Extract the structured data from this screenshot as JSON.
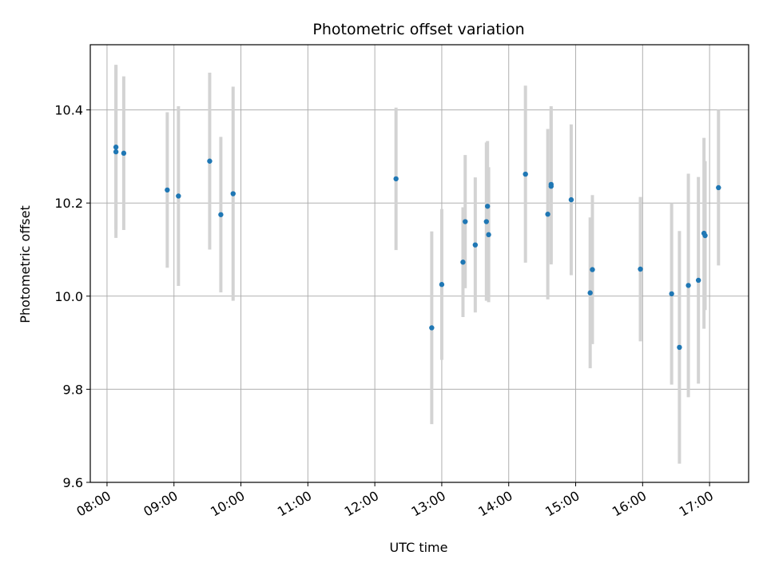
{
  "chart_data": {
    "type": "scatter",
    "title": "Photometric offset variation",
    "xlabel": "UTC time",
    "ylabel": "Photometric offset",
    "grid": true,
    "x_ticks": [
      "08:00",
      "09:00",
      "10:00",
      "11:00",
      "12:00",
      "13:00",
      "14:00",
      "15:00",
      "16:00",
      "17:00"
    ],
    "y_ticks": [
      "9.6",
      "9.8",
      "10.0",
      "10.2",
      "10.4"
    ],
    "ylim": [
      9.6,
      10.54
    ],
    "xlim_hours": [
      "07:45",
      "17:35"
    ],
    "colors": {
      "point": "#1f77b4",
      "errorbar": "#d3d3d3",
      "grid": "#b0b0b0"
    },
    "points": [
      {
        "x": "08:08",
        "y": 10.31,
        "err": 0.185
      },
      {
        "x": "08:08",
        "y": 10.32,
        "err": 0.177
      },
      {
        "x": "08:15",
        "y": 10.307,
        "err": 0.165
      },
      {
        "x": "08:54",
        "y": 10.228,
        "err": 0.167
      },
      {
        "x": "09:04",
        "y": 10.215,
        "err": 0.193
      },
      {
        "x": "09:32",
        "y": 10.29,
        "err": 0.19
      },
      {
        "x": "09:42",
        "y": 10.175,
        "err": 0.167
      },
      {
        "x": "09:53",
        "y": 10.22,
        "err": 0.23
      },
      {
        "x": "12:19",
        "y": 10.252,
        "err": 0.153
      },
      {
        "x": "12:51",
        "y": 9.932,
        "err": 0.207
      },
      {
        "x": "13:00",
        "y": 10.025,
        "err": 0.162
      },
      {
        "x": "13:19",
        "y": 10.073,
        "err": 0.118
      },
      {
        "x": "13:21",
        "y": 10.16,
        "err": 0.143
      },
      {
        "x": "13:30",
        "y": 10.11,
        "err": 0.145
      },
      {
        "x": "13:40",
        "y": 10.16,
        "err": 0.17
      },
      {
        "x": "13:41",
        "y": 10.193,
        "err": 0.14
      },
      {
        "x": "13:42",
        "y": 10.132,
        "err": 0.145
      },
      {
        "x": "14:15",
        "y": 10.262,
        "err": 0.19
      },
      {
        "x": "14:35",
        "y": 10.176,
        "err": 0.183
      },
      {
        "x": "14:38",
        "y": 10.24,
        "err": 0.168
      },
      {
        "x": "14:38",
        "y": 10.236,
        "err": 0.168
      },
      {
        "x": "14:56",
        "y": 10.207,
        "err": 0.162
      },
      {
        "x": "15:13",
        "y": 10.007,
        "err": 0.162
      },
      {
        "x": "15:15",
        "y": 10.057,
        "err": 0.16
      },
      {
        "x": "15:58",
        "y": 10.058,
        "err": 0.155
      },
      {
        "x": "16:26",
        "y": 10.005,
        "err": 0.195
      },
      {
        "x": "16:33",
        "y": 9.89,
        "err": 0.25
      },
      {
        "x": "16:41",
        "y": 10.023,
        "err": 0.24
      },
      {
        "x": "16:50",
        "y": 10.034,
        "err": 0.222
      },
      {
        "x": "16:55",
        "y": 10.135,
        "err": 0.205
      },
      {
        "x": "16:56",
        "y": 10.13,
        "err": 0.16
      },
      {
        "x": "17:08",
        "y": 10.233,
        "err": 0.167
      }
    ]
  }
}
